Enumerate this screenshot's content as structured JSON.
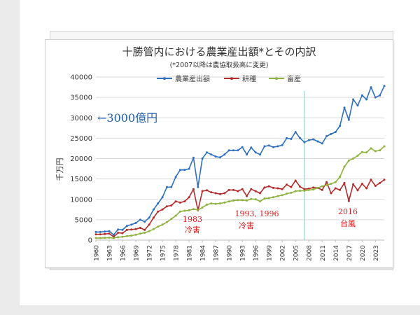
{
  "chart_data": {
    "type": "line",
    "title": "十勝管内における農業産出額*とその内訳",
    "subtitle": "(*2007以降は農協取扱高に変更)",
    "ylabel": "千万円",
    "xlabel": "",
    "ylim": [
      0,
      40000
    ],
    "yticks": [
      "0",
      "5000",
      "10000",
      "15000",
      "20000",
      "25000",
      "30000",
      "35000",
      "40000"
    ],
    "xticks": [
      "1960",
      "1963",
      "1966",
      "1969",
      "1972",
      "1975",
      "1978",
      "1981",
      "1984",
      "1987",
      "1990",
      "1993",
      "1996",
      "1999",
      "2002",
      "2005",
      "2008",
      "2011",
      "2014",
      "2017",
      "2020",
      "2023"
    ],
    "grid": true,
    "legend_position": "top",
    "x_start": 1960,
    "series": [
      {
        "name": "農業産出額",
        "color": "#2e6fbf",
        "values": [
          2000,
          2000,
          2100,
          2200,
          1300,
          2600,
          2500,
          3500,
          3800,
          4200,
          5000,
          4500,
          5500,
          7500,
          9000,
          10500,
          13000,
          13000,
          15500,
          17200,
          17200,
          17500,
          20200,
          13000,
          20000,
          21500,
          21000,
          20500,
          20300,
          21000,
          22000,
          22000,
          22000,
          22800,
          21000,
          22700,
          21500,
          21000,
          23000,
          23200,
          22800,
          23000,
          23300,
          25000,
          24800,
          26500,
          25000,
          24000,
          24500,
          24700,
          24200,
          23700,
          25500,
          26000,
          26500,
          28000,
          32500,
          29500,
          34500,
          33000,
          35500,
          34500,
          37500,
          35000,
          35500,
          37800
        ]
      },
      {
        "name": "耕種",
        "color": "#b32a2a",
        "values": [
          1400,
          1400,
          1500,
          1600,
          800,
          1800,
          1700,
          2500,
          2600,
          2700,
          3000,
          2500,
          3800,
          5500,
          7000,
          7500,
          8300,
          8500,
          9500,
          9200,
          9500,
          10500,
          12500,
          7300,
          12000,
          12200,
          11700,
          11500,
          11300,
          11500,
          12300,
          12300,
          12000,
          12500,
          10800,
          12500,
          12000,
          11500,
          12900,
          13200,
          12800,
          12700,
          12500,
          13600,
          13000,
          14600,
          13100,
          12500,
          12600,
          12900,
          12800,
          12300,
          14200,
          11500,
          12700,
          12300,
          14000,
          9600,
          13700,
          12200,
          13800,
          12700,
          14800,
          13300,
          14000,
          14800
        ]
      },
      {
        "name": "畜産",
        "color": "#8db23f",
        "values": [
          500,
          500,
          550,
          600,
          500,
          700,
          800,
          1000,
          1100,
          1300,
          1600,
          1800,
          2200,
          2700,
          3300,
          3800,
          4400,
          5200,
          6000,
          7000,
          7200,
          7300,
          7600,
          7400,
          8000,
          8700,
          9000,
          8900,
          9000,
          9200,
          9500,
          9700,
          9800,
          9800,
          9700,
          10100,
          10000,
          9500,
          10200,
          10300,
          10500,
          10800,
          11000,
          11400,
          11600,
          12000,
          12100,
          12100,
          12300,
          12400,
          12800,
          13200,
          13500,
          13800,
          14200,
          15500,
          18000,
          19500,
          20000,
          20700,
          21600,
          21500,
          22500,
          21800,
          22000,
          23000
        ]
      }
    ],
    "annotations": [
      {
        "text": "←3000億円",
        "color": "#1f5fa8"
      },
      {
        "text": "1983",
        "color": "#e01a1a"
      },
      {
        "text": "冷害",
        "color": "#e01a1a"
      },
      {
        "text": "1993, 1996",
        "color": "#e01a1a"
      },
      {
        "text": "冷害",
        "color": "#e01a1a"
      },
      {
        "text": "2016",
        "color": "#e01a1a"
      },
      {
        "text": "台風",
        "color": "#e01a1a"
      }
    ],
    "vline_year": 2007,
    "vline_color": "#7fd0c0"
  }
}
